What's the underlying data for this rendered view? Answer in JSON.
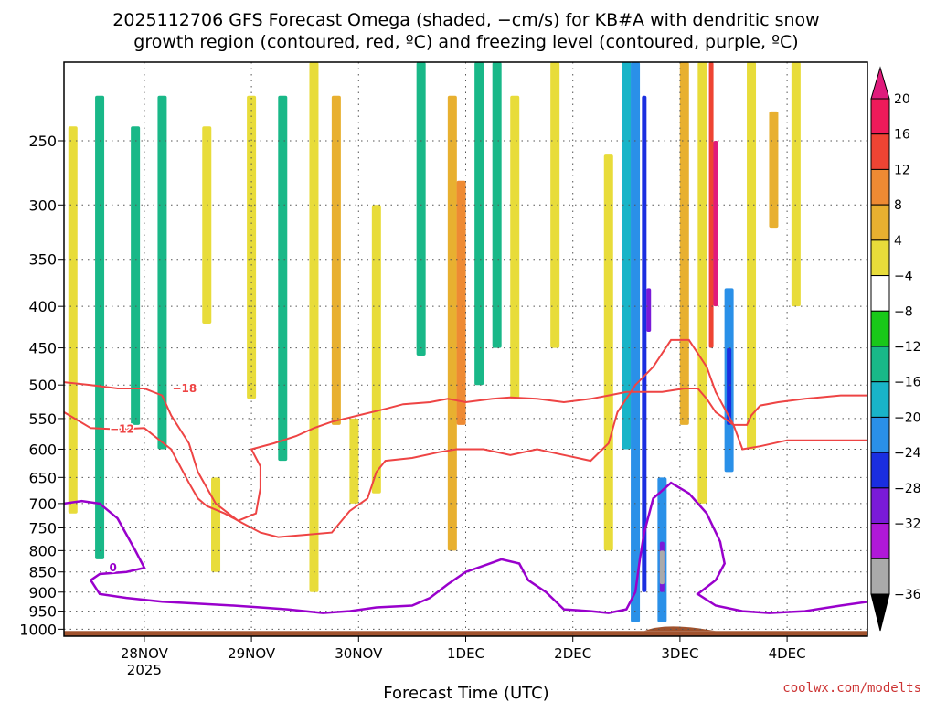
{
  "colors": {
    "isotherm_dgz": "#ee4444",
    "freezing_level": "#9900cc",
    "terrain": "#a0522d",
    "credit": "#cc3333"
  },
  "chart_data": {
    "type": "heatmap",
    "title_line1": "2025112706 GFS Forecast Omega (shaded, −cm/s) for KB#A with dendritic snow",
    "title_line2": "growth region (contoured, red, ºC) and freezing level (contoured, purple, ºC)",
    "xlabel": "Forecast Time (UTC)",
    "credit": "coolwx.com/modelts",
    "x_ticks": [
      {
        "label": "28NOV",
        "sub": "2025",
        "hour": 24
      },
      {
        "label": "29NOV",
        "sub": "",
        "hour": 48
      },
      {
        "label": "30NOV",
        "sub": "",
        "hour": 72
      },
      {
        "label": "1DEC",
        "sub": "",
        "hour": 96
      },
      {
        "label": "2DEC",
        "sub": "",
        "hour": 120
      },
      {
        "label": "3DEC",
        "sub": "",
        "hour": 144
      },
      {
        "label": "4DEC",
        "sub": "",
        "hour": 168
      }
    ],
    "x_range_hours": [
      6,
      186
    ],
    "y_ticks": [
      250,
      300,
      350,
      400,
      450,
      500,
      550,
      600,
      650,
      700,
      750,
      800,
      850,
      900,
      950,
      1000
    ],
    "y_range_hpa": [
      200,
      1020
    ],
    "colorbar": {
      "labels": [
        "20",
        "16",
        "12",
        "8",
        "4",
        "−4",
        "−8",
        "−12",
        "−16",
        "−20",
        "−24",
        "−28",
        "−32",
        "−36"
      ],
      "colors": [
        "#ee1a5a",
        "#ee4433",
        "#ee8a33",
        "#e8b030",
        "#e8dc3a",
        "#ffffff",
        "#19c819",
        "#19b888",
        "#19b4c8",
        "#2a90e8",
        "#1a2ee0",
        "#7a1ad8",
        "#b018d8",
        "#aaaaaa"
      ],
      "top_arrow": "#e01b7c",
      "bottom_arrow": "#000000"
    },
    "shaded_regions": [
      {
        "hour": 8,
        "p_top": 240,
        "p_bot": 720,
        "value": 6
      },
      {
        "hour": 14,
        "p_top": 220,
        "p_bot": 820,
        "value": -8
      },
      {
        "hour": 22,
        "p_top": 240,
        "p_bot": 560,
        "value": -10
      },
      {
        "hour": 28,
        "p_top": 220,
        "p_bot": 600,
        "value": -9
      },
      {
        "hour": 38,
        "p_top": 240,
        "p_bot": 420,
        "value": 5
      },
      {
        "hour": 40,
        "p_top": 650,
        "p_bot": 850,
        "value": 5
      },
      {
        "hour": 48,
        "p_top": 220,
        "p_bot": 520,
        "value": 5
      },
      {
        "hour": 55,
        "p_top": 220,
        "p_bot": 620,
        "value": -9
      },
      {
        "hour": 62,
        "p_top": 200,
        "p_bot": 900,
        "value": 6
      },
      {
        "hour": 67,
        "p_top": 220,
        "p_bot": 560,
        "value": 9
      },
      {
        "hour": 71,
        "p_top": 550,
        "p_bot": 700,
        "value": 5
      },
      {
        "hour": 76,
        "p_top": 300,
        "p_bot": 680,
        "value": 6
      },
      {
        "hour": 86,
        "p_top": 200,
        "p_bot": 460,
        "value": -9
      },
      {
        "hour": 93,
        "p_top": 220,
        "p_bot": 800,
        "value": 8
      },
      {
        "hour": 95,
        "p_top": 280,
        "p_bot": 560,
        "value": 13
      },
      {
        "hour": 99,
        "p_top": 200,
        "p_bot": 500,
        "value": -10
      },
      {
        "hour": 103,
        "p_top": 200,
        "p_bot": 450,
        "value": -9
      },
      {
        "hour": 107,
        "p_top": 220,
        "p_bot": 520,
        "value": 5
      },
      {
        "hour": 116,
        "p_top": 200,
        "p_bot": 450,
        "value": 5
      },
      {
        "hour": 128,
        "p_top": 260,
        "p_bot": 800,
        "value": 6
      },
      {
        "hour": 132,
        "p_top": 200,
        "p_bot": 600,
        "value": -14
      },
      {
        "hour": 134,
        "p_top": 200,
        "p_bot": 980,
        "value": -18
      },
      {
        "hour": 136,
        "p_top": 220,
        "p_bot": 900,
        "value": -22
      },
      {
        "hour": 137,
        "p_top": 380,
        "p_bot": 430,
        "value": -27
      },
      {
        "hour": 140,
        "p_top": 650,
        "p_bot": 980,
        "value": -16
      },
      {
        "hour": 140,
        "p_top": 780,
        "p_bot": 900,
        "value": -26
      },
      {
        "hour": 140,
        "p_top": 800,
        "p_bot": 880,
        "value": -34
      },
      {
        "hour": 145,
        "p_top": 200,
        "p_bot": 560,
        "value": 9
      },
      {
        "hour": 149,
        "p_top": 200,
        "p_bot": 700,
        "value": 6
      },
      {
        "hour": 151,
        "p_top": 200,
        "p_bot": 450,
        "value": 17
      },
      {
        "hour": 152,
        "p_top": 250,
        "p_bot": 400,
        "value": 21
      },
      {
        "hour": 155,
        "p_top": 380,
        "p_bot": 640,
        "value": -17
      },
      {
        "hour": 155,
        "p_top": 450,
        "p_bot": 560,
        "value": -22
      },
      {
        "hour": 160,
        "p_top": 200,
        "p_bot": 600,
        "value": 6
      },
      {
        "hour": 165,
        "p_top": 230,
        "p_bot": 320,
        "value": 11
      },
      {
        "hour": 170,
        "p_top": 200,
        "p_bot": 400,
        "value": 6
      }
    ],
    "contours": [
      {
        "label": "−18",
        "color": "red",
        "label_hour": 33,
        "label_p": 505,
        "points": [
          [
            6,
            496
          ],
          [
            12,
            500
          ],
          [
            18,
            505
          ],
          [
            24,
            505
          ],
          [
            28,
            515
          ],
          [
            30,
            545
          ],
          [
            34,
            590
          ],
          [
            36,
            640
          ],
          [
            40,
            700
          ],
          [
            45,
            735
          ],
          [
            49,
            720
          ],
          [
            50,
            670
          ],
          [
            50,
            630
          ],
          [
            48,
            600
          ],
          [
            53,
            590
          ],
          [
            58,
            578
          ],
          [
            62,
            565
          ],
          [
            66,
            555
          ],
          [
            72,
            545
          ],
          [
            78,
            535
          ],
          [
            82,
            528
          ],
          [
            88,
            525
          ],
          [
            92,
            520
          ],
          [
            96,
            525
          ],
          [
            102,
            520
          ],
          [
            106,
            518
          ],
          [
            112,
            520
          ],
          [
            118,
            525
          ],
          [
            124,
            520
          ],
          [
            128,
            515
          ],
          [
            132,
            510
          ],
          [
            136,
            510
          ],
          [
            140,
            510
          ],
          [
            145,
            505
          ],
          [
            148,
            505
          ],
          [
            150,
            520
          ],
          [
            152,
            540
          ],
          [
            156,
            560
          ],
          [
            159,
            560
          ],
          [
            160,
            545
          ],
          [
            162,
            530
          ],
          [
            166,
            525
          ],
          [
            172,
            520
          ],
          [
            180,
            515
          ],
          [
            186,
            515
          ]
        ]
      },
      {
        "label": "−12",
        "color": "red",
        "label_hour": 19,
        "label_p": 567,
        "points": [
          [
            6,
            540
          ],
          [
            12,
            565
          ],
          [
            18,
            567
          ],
          [
            24,
            565
          ],
          [
            30,
            600
          ],
          [
            34,
            660
          ],
          [
            36,
            690
          ],
          [
            38,
            705
          ],
          [
            42,
            720
          ],
          [
            46,
            740
          ],
          [
            50,
            760
          ],
          [
            54,
            770
          ],
          [
            60,
            765
          ],
          [
            66,
            760
          ],
          [
            70,
            715
          ],
          [
            74,
            690
          ],
          [
            76,
            640
          ],
          [
            78,
            620
          ],
          [
            84,
            615
          ],
          [
            90,
            605
          ],
          [
            94,
            600
          ],
          [
            100,
            600
          ],
          [
            106,
            610
          ],
          [
            112,
            600
          ],
          [
            118,
            610
          ],
          [
            124,
            620
          ],
          [
            128,
            590
          ],
          [
            130,
            540
          ],
          [
            134,
            500
          ],
          [
            138,
            475
          ],
          [
            142,
            440
          ],
          [
            146,
            440
          ],
          [
            150,
            475
          ],
          [
            152,
            510
          ],
          [
            156,
            560
          ],
          [
            158,
            600
          ],
          [
            162,
            595
          ],
          [
            168,
            585
          ],
          [
            176,
            585
          ],
          [
            186,
            585
          ]
        ]
      },
      {
        "label": "0",
        "color": "purple",
        "label_hour": 17,
        "label_p": 840,
        "points": [
          [
            6,
            700
          ],
          [
            10,
            695
          ],
          [
            14,
            700
          ],
          [
            18,
            730
          ],
          [
            22,
            800
          ],
          [
            24,
            840
          ],
          [
            20,
            850
          ],
          [
            14,
            855
          ],
          [
            12,
            870
          ],
          [
            14,
            905
          ],
          [
            20,
            915
          ],
          [
            28,
            925
          ],
          [
            36,
            930
          ],
          [
            44,
            935
          ],
          [
            50,
            940
          ],
          [
            56,
            945
          ],
          [
            60,
            950
          ],
          [
            64,
            955
          ],
          [
            70,
            950
          ],
          [
            76,
            940
          ],
          [
            84,
            935
          ],
          [
            88,
            915
          ],
          [
            92,
            880
          ],
          [
            96,
            850
          ],
          [
            100,
            835
          ],
          [
            104,
            820
          ],
          [
            108,
            830
          ],
          [
            110,
            870
          ],
          [
            114,
            900
          ],
          [
            118,
            945
          ],
          [
            124,
            950
          ],
          [
            128,
            955
          ],
          [
            132,
            945
          ],
          [
            134,
            900
          ],
          [
            135,
            820
          ],
          [
            136,
            760
          ],
          [
            138,
            690
          ],
          [
            142,
            660
          ],
          [
            146,
            680
          ],
          [
            150,
            720
          ],
          [
            153,
            780
          ],
          [
            154,
            830
          ],
          [
            152,
            870
          ],
          [
            148,
            905
          ],
          [
            152,
            935
          ],
          [
            158,
            950
          ],
          [
            164,
            955
          ],
          [
            172,
            950
          ],
          [
            180,
            935
          ],
          [
            186,
            925
          ]
        ]
      }
    ],
    "terrain_p": 1005
  }
}
